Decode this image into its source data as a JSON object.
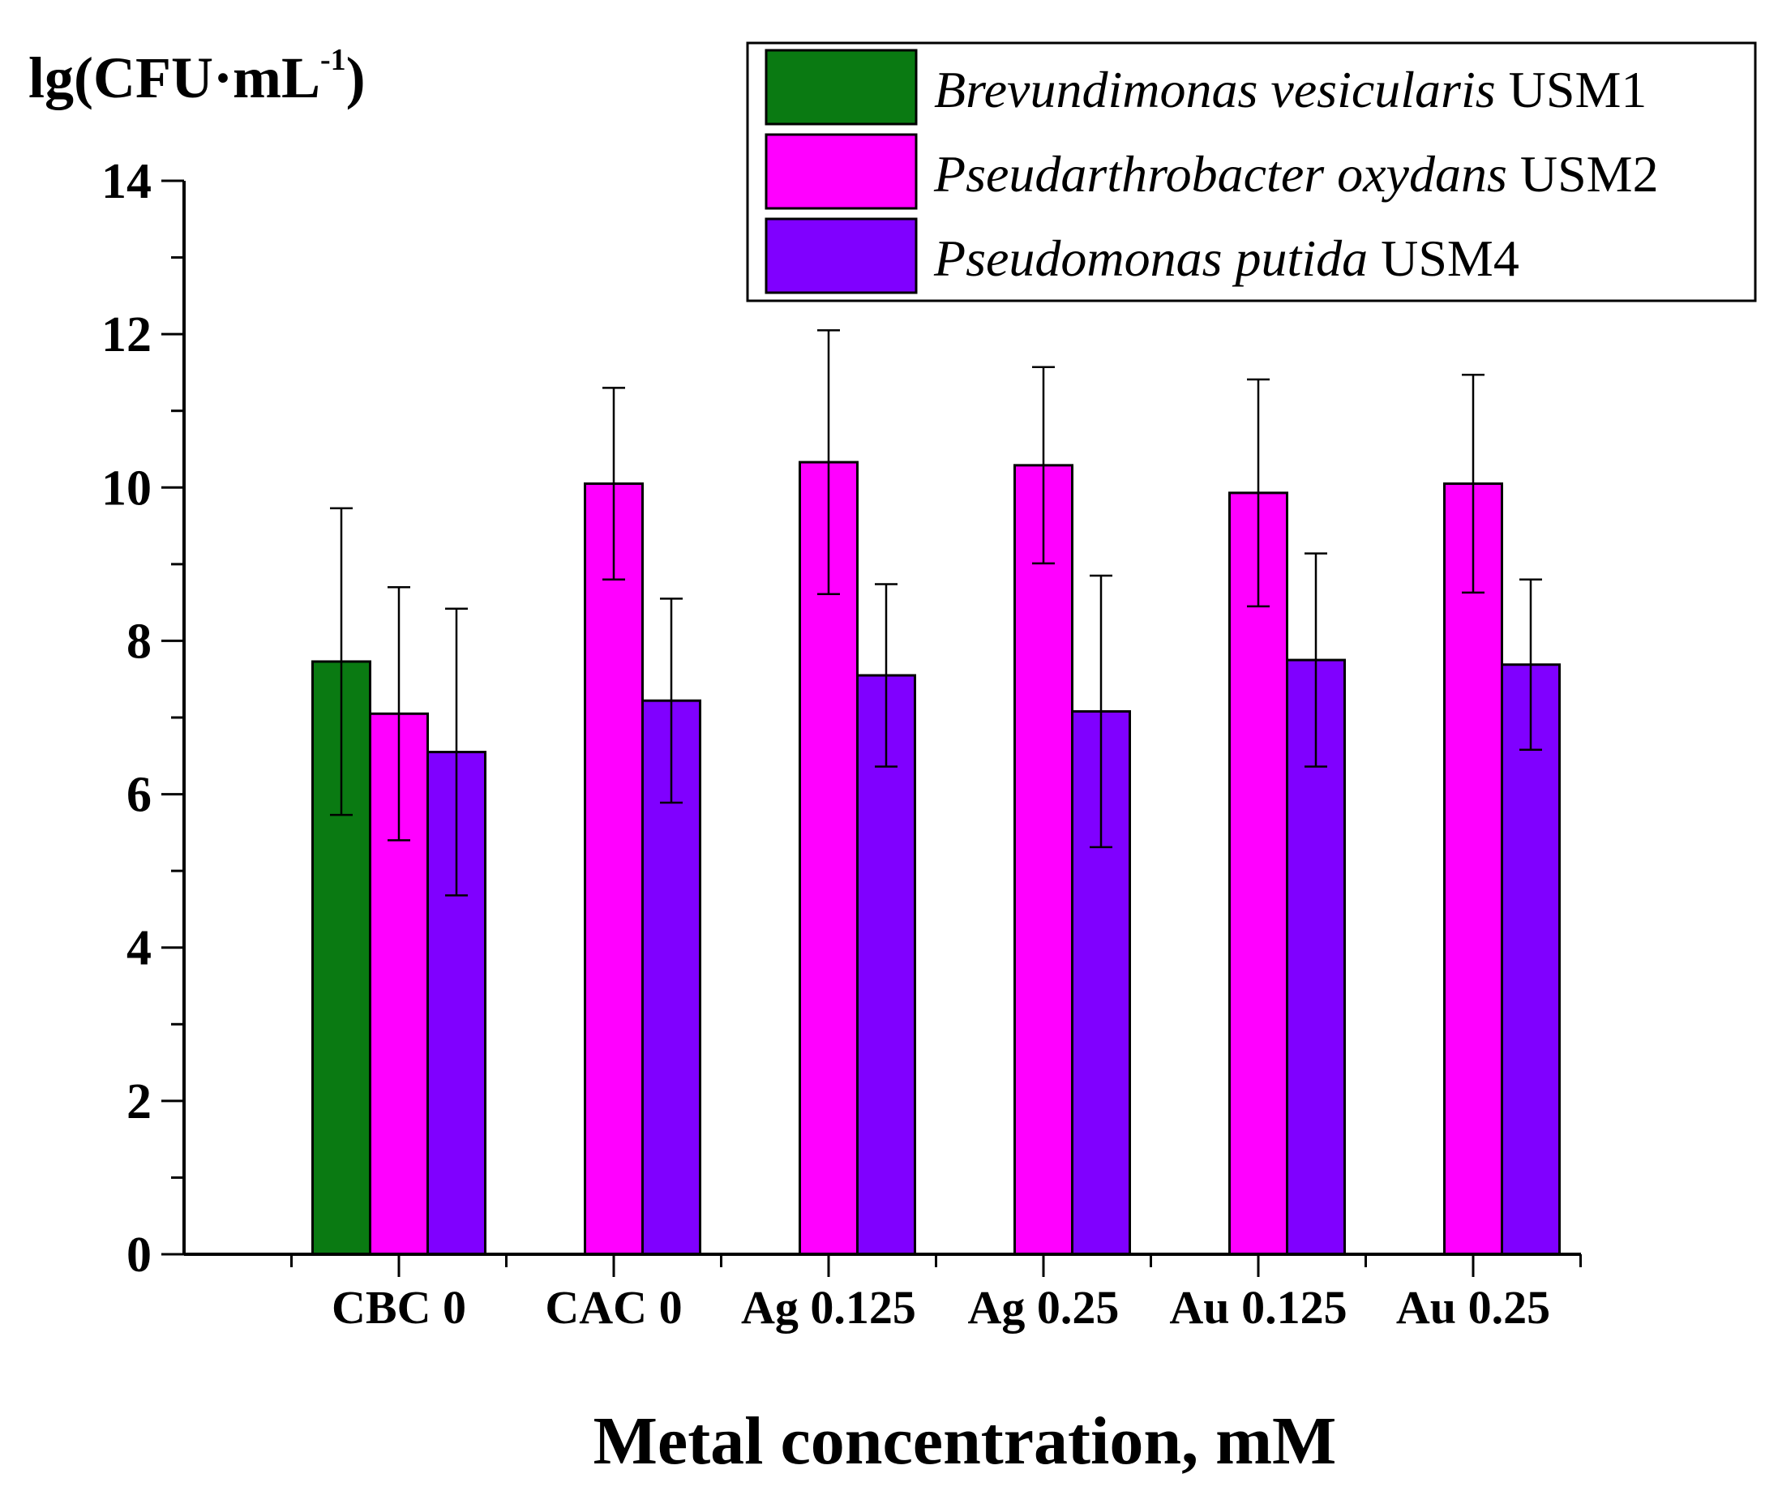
{
  "chart_data": {
    "type": "bar",
    "xlabel": "Metal concentration, mM",
    "ylabel": "lg(CFU·mL",
    "ylabel_sup": "-1",
    "ylabel_close": ")",
    "ylim": [
      0,
      14
    ],
    "yticks": [
      "0",
      "2",
      "4",
      "6",
      "8",
      "10",
      "12",
      "14"
    ],
    "categories": [
      "CBC 0",
      "CAC 0",
      "Ag 0.125",
      "Ag 0.25",
      "Au 0.125",
      "Au 0.25"
    ],
    "series": [
      {
        "name_italic": "Brevundimonas vesicularis",
        "name_suffix": "USM1",
        "color": "#0a7a12",
        "values": [
          7.73,
          null,
          null,
          null,
          null,
          null
        ],
        "errors": [
          2.0,
          null,
          null,
          null,
          null,
          null
        ]
      },
      {
        "name_italic": "Pseudarthrobacter oxydans",
        "name_suffix": "USM2",
        "color": "#ff00ff",
        "values": [
          7.05,
          10.05,
          10.33,
          10.29,
          9.93,
          10.05
        ],
        "errors": [
          1.65,
          1.25,
          1.72,
          1.28,
          1.48,
          1.42
        ]
      },
      {
        "name_italic": "Pseudomonas putida",
        "name_suffix": "USM4",
        "color": "#8000ff",
        "values": [
          6.55,
          7.22,
          7.55,
          7.08,
          7.75,
          7.69
        ],
        "errors": [
          1.87,
          1.33,
          1.19,
          1.77,
          1.39,
          1.11
        ]
      }
    ],
    "legend_position": "top-right",
    "grid": false
  }
}
